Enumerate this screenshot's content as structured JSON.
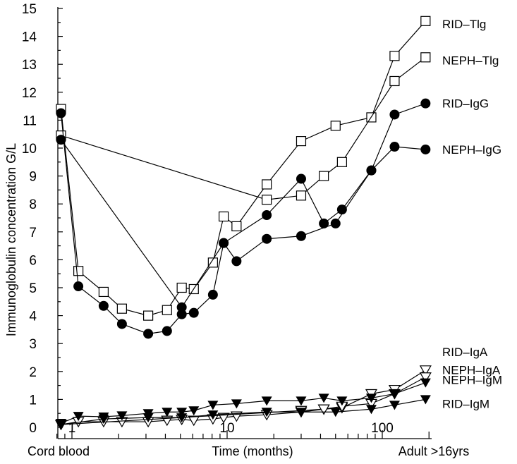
{
  "chart_data": {
    "type": "line",
    "title": "",
    "ylabel": "Immunoglobulin concentration G/L",
    "xlabel": "Time (months)",
    "x_scale": "log",
    "xlim": [
      0.75,
      200
    ],
    "ylim": [
      0,
      15
    ],
    "y_ticks": [
      0,
      1,
      2,
      3,
      4,
      5,
      6,
      7,
      8,
      9,
      10,
      11,
      12,
      13,
      14,
      15
    ],
    "x_major_ticks": [
      1,
      10,
      100
    ],
    "x_tick_labels": [
      "1",
      "10",
      "100"
    ],
    "x_category_labels": {
      "left": "Cord blood",
      "right": "Adult >16yrs"
    },
    "grid": false,
    "legend": "labels at right end of each series",
    "series": [
      {
        "name": "RID–Tlg",
        "marker": "open-square",
        "x": [
          0.85,
          1.1,
          1.6,
          2.1,
          3.1,
          4.1,
          5.1,
          6.1,
          8.1,
          9.5,
          11.5,
          18,
          30,
          50,
          85,
          120,
          190
        ],
        "y": [
          11.4,
          5.6,
          4.85,
          4.25,
          4.0,
          4.2,
          5.0,
          4.95,
          5.9,
          7.55,
          7.2,
          8.7,
          10.25,
          10.8,
          11.1,
          13.3,
          14.55
        ]
      },
      {
        "name": "NEPH–Tlg",
        "marker": "open-square",
        "x": [
          0.85,
          18,
          30,
          42,
          55,
          120,
          190
        ],
        "y": [
          10.45,
          8.15,
          8.3,
          9.0,
          9.5,
          12.4,
          13.25
        ]
      },
      {
        "name": "RID–IgG",
        "marker": "filled-circle",
        "x": [
          0.85,
          1.1,
          1.6,
          2.1,
          3.1,
          4.1,
          5.1,
          6.1,
          8.1,
          9.5,
          11.5,
          18,
          30,
          50,
          85,
          120,
          190
        ],
        "y": [
          11.25,
          5.05,
          4.35,
          3.7,
          3.35,
          3.45,
          4.05,
          4.1,
          4.75,
          6.6,
          5.95,
          6.75,
          6.85,
          7.3,
          9.2,
          11.2,
          11.6
        ]
      },
      {
        "name": "NEPH–IgG",
        "marker": "filled-circle",
        "x": [
          0.85,
          5.1,
          9.5,
          18,
          30,
          42,
          55,
          85,
          120,
          190
        ],
        "y": [
          10.3,
          4.3,
          6.6,
          7.6,
          8.9,
          7.3,
          7.8,
          9.2,
          10.05,
          9.95
        ]
      },
      {
        "name": "RID–IgA",
        "marker": "open-triangle-down",
        "x": [
          0.85,
          1.1,
          1.6,
          2.1,
          3.1,
          4.1,
          5.1,
          6.1,
          8.1,
          9.5,
          11.5,
          18,
          30,
          42,
          55,
          85,
          120,
          190
        ],
        "y": [
          0.1,
          0.2,
          0.2,
          0.2,
          0.2,
          0.25,
          0.28,
          0.25,
          0.3,
          0.35,
          0.4,
          0.45,
          0.55,
          0.65,
          0.7,
          1.2,
          1.35,
          2.05
        ]
      },
      {
        "name": "NEPH–IgA",
        "marker": "open-triangle-down",
        "x": [
          0.85,
          30,
          42,
          55,
          85,
          120,
          190
        ],
        "y": [
          0.1,
          0.6,
          0.65,
          0.75,
          0.85,
          1.2,
          1.8
        ]
      },
      {
        "name": "NEPH–IgM",
        "marker": "filled-triangle-down",
        "x": [
          0.85,
          1.1,
          1.6,
          2.1,
          3.1,
          4.1,
          5.1,
          6.1,
          8.1,
          11.5,
          18,
          30,
          42,
          55,
          85,
          120,
          190
        ],
        "y": [
          0.15,
          0.4,
          0.38,
          0.42,
          0.5,
          0.55,
          0.55,
          0.6,
          0.8,
          0.85,
          0.95,
          0.95,
          1.05,
          0.95,
          1.05,
          1.2,
          1.6
        ]
      },
      {
        "name": "RID–IgM",
        "marker": "filled-triangle-down",
        "x": [
          0.85,
          1.6,
          3.1,
          5.1,
          8.1,
          18,
          30,
          50,
          85,
          120,
          190
        ],
        "y": [
          0.1,
          0.3,
          0.35,
          0.35,
          0.45,
          0.55,
          0.55,
          0.55,
          0.65,
          0.8,
          1.0
        ]
      }
    ]
  }
}
